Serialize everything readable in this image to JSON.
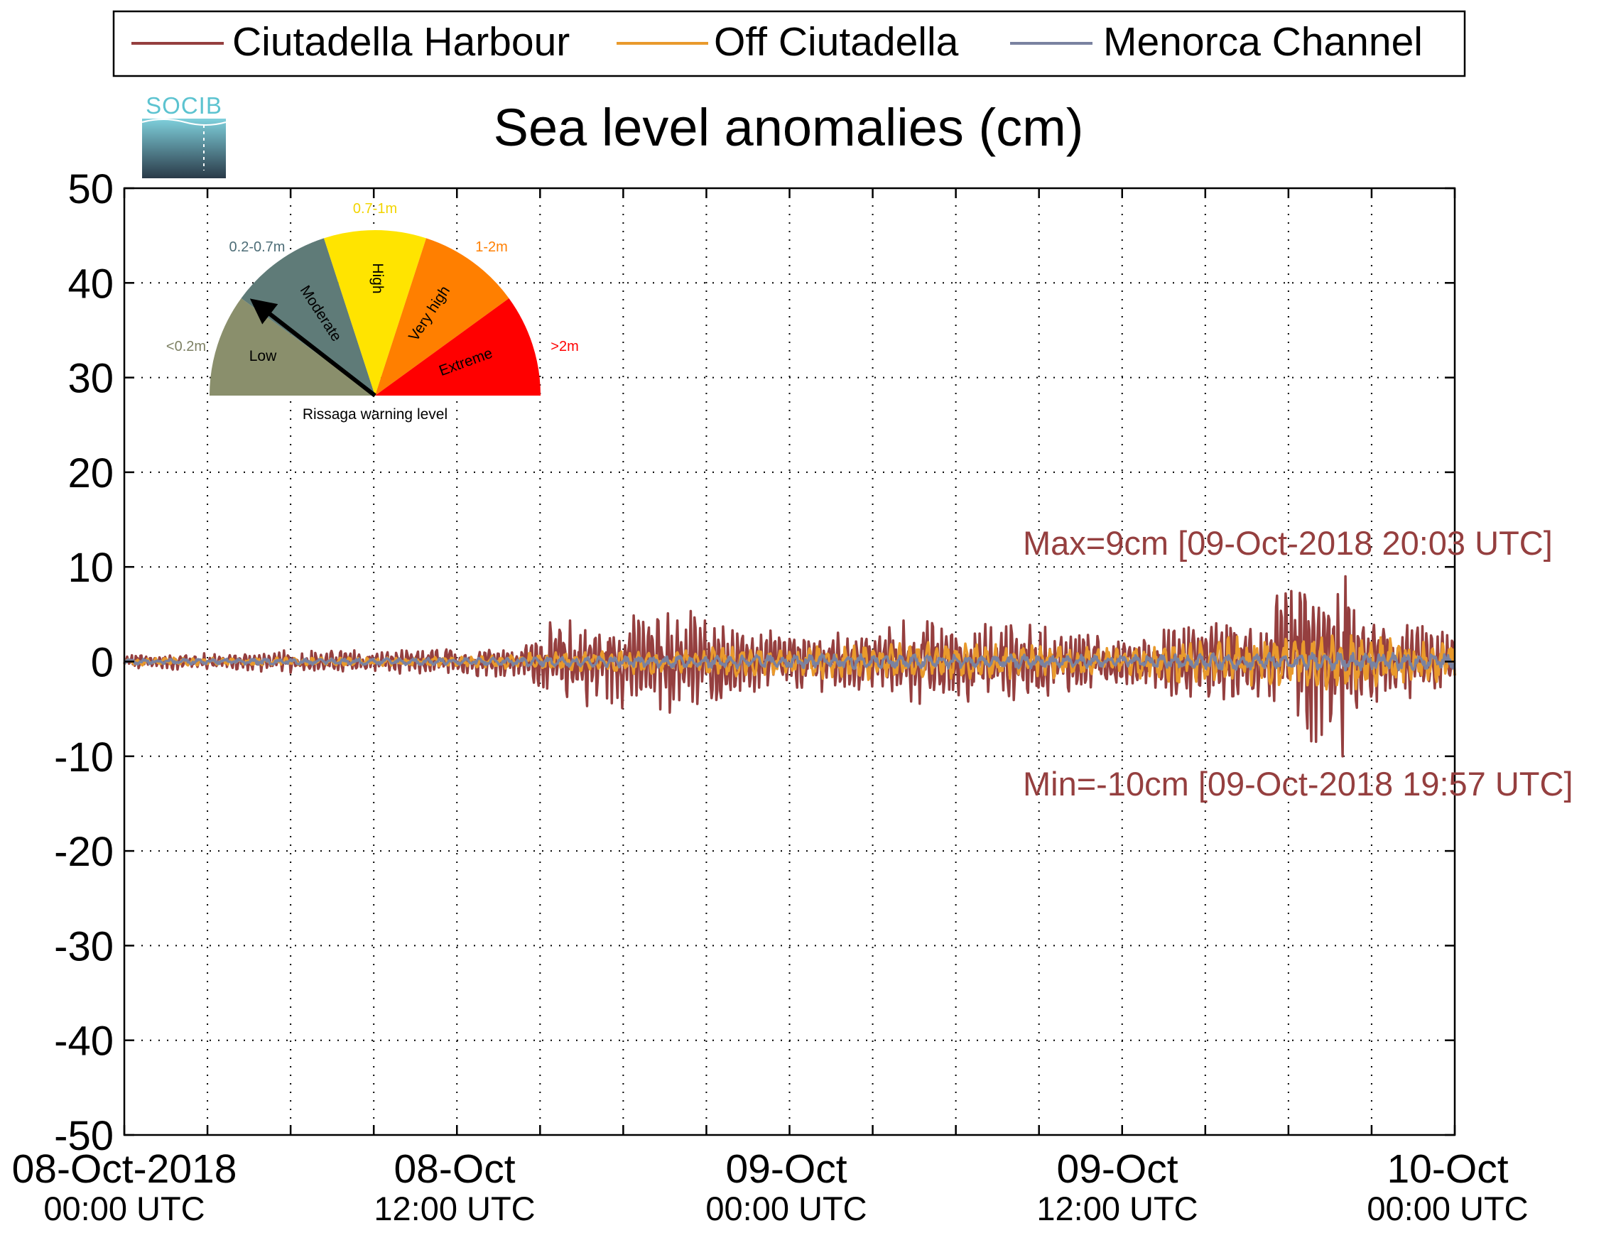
{
  "legend": {
    "placement": "top-center",
    "entries": [
      {
        "label": "Ciutadella Harbour",
        "color": "#953f3f"
      },
      {
        "label": "Off Ciutadella",
        "color": "#e99a2c"
      },
      {
        "label": "Menorca Channel",
        "color": "#7a82a0"
      }
    ]
  },
  "logo": {
    "text": "SOCIB"
  },
  "gauge": {
    "caption": "Rissaga warning level",
    "needle_level": "Moderate",
    "levels": [
      {
        "name": "Low",
        "range": "<0.2m",
        "color": "#8a8f6c",
        "range_color": "#7d8063"
      },
      {
        "name": "Moderate",
        "range": "0.2-0.7m",
        "color": "#5f7b78",
        "range_color": "#4d6d77"
      },
      {
        "name": "High",
        "range": "0.7-1m",
        "color": "#ffe400",
        "range_color": "#f2d400"
      },
      {
        "name": "Very high",
        "range": "1-2m",
        "color": "#ff7f00",
        "range_color": "#ff7f00"
      },
      {
        "name": "Extreme",
        "range": ">2m",
        "color": "#ff0000",
        "range_color": "#ff0000"
      }
    ]
  },
  "annotations": {
    "max": "Max=9cm [09-Oct-2018 20:03 UTC]",
    "min": "Min=-10cm [09-Oct-2018 19:57 UTC]",
    "color": "#953f3f"
  },
  "chart_data": {
    "type": "line",
    "title": "Sea level anomalies (cm)",
    "xlabel": "",
    "ylabel": "",
    "grid": true,
    "ylim": [
      -50,
      50
    ],
    "yticks": [
      -50,
      -40,
      -30,
      -20,
      -10,
      0,
      10,
      20,
      30,
      40,
      50
    ],
    "xlim": [
      "2018-10-08 00:00",
      "2018-10-10 00:00"
    ],
    "x_unit": "hours since 08-Oct-2018 00:00 UTC",
    "xticks": [
      {
        "date": "08-Oct-2018",
        "time": "00:00 UTC",
        "hour": 0
      },
      {
        "date": "08-Oct",
        "time": "12:00 UTC",
        "hour": 12
      },
      {
        "date": "09-Oct",
        "time": "00:00 UTC",
        "hour": 24
      },
      {
        "date": "09-Oct",
        "time": "12:00 UTC",
        "hour": 36
      },
      {
        "date": "10-Oct",
        "time": "00:00 UTC",
        "hour": 48
      }
    ],
    "minor_tick_hours": [
      3,
      6,
      9,
      15,
      18,
      21,
      27,
      30,
      33,
      39,
      42,
      45
    ],
    "series": [
      {
        "name": "Ciutadella Harbour",
        "color": "#953f3f",
        "envelope_x_hours": [
          0,
          3,
          6,
          9,
          12,
          14.5,
          15.5,
          18,
          20.5,
          21.5,
          24,
          27,
          28.5,
          30,
          33,
          36,
          36.5,
          38,
          41,
          41.5,
          42.5,
          43.2,
          44,
          45,
          48
        ],
        "envelope_amp_cm": [
          0.8,
          1.0,
          1.2,
          1.3,
          1.5,
          2.0,
          4.5,
          5.0,
          6.0,
          4.0,
          3.0,
          3.5,
          5.5,
          4.5,
          4.0,
          2.5,
          2.5,
          4.0,
          4.5,
          7.5,
          9.0,
          9.5,
          7.0,
          4.5,
          3.5
        ],
        "extremes": [
          {
            "hour": 44.05,
            "value": 9,
            "label": "max"
          },
          {
            "hour": 43.95,
            "value": -10,
            "label": "min"
          }
        ]
      },
      {
        "name": "Off Ciutadella",
        "color": "#e99a2c",
        "envelope_x_hours": [
          0,
          12,
          15,
          24,
          30,
          36,
          38,
          42,
          44,
          48
        ],
        "envelope_amp_cm": [
          0.4,
          0.5,
          1.0,
          1.8,
          2.2,
          1.5,
          2.5,
          2.8,
          3.0,
          2.2
        ]
      },
      {
        "name": "Menorca Channel",
        "color": "#7a82a0",
        "envelope_x_hours": [
          0,
          12,
          24,
          36,
          42,
          48
        ],
        "envelope_amp_cm": [
          0.3,
          0.4,
          0.8,
          0.7,
          1.0,
          1.0
        ]
      }
    ]
  }
}
